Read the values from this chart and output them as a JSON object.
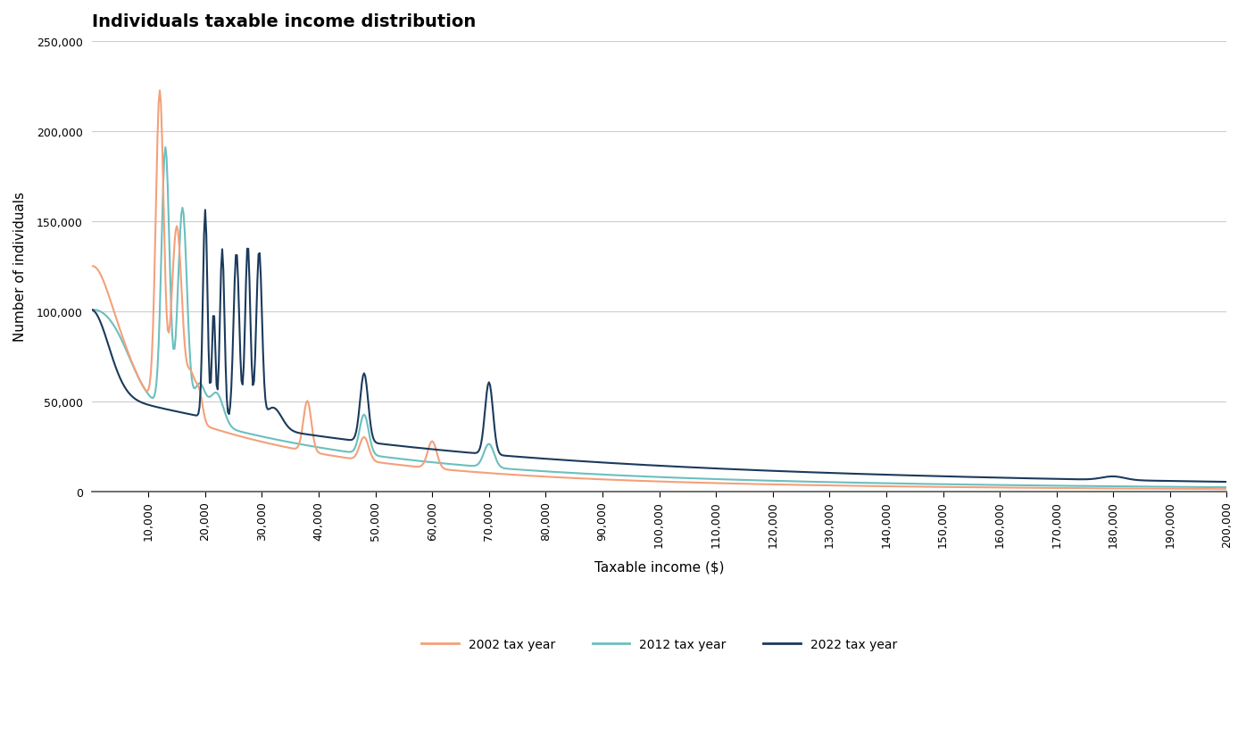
{
  "title": "Individuals taxable income distribution",
  "xlabel": "Taxable income ($)",
  "ylabel": "Number of individuals",
  "xlim": [
    0,
    200000
  ],
  "ylim": [
    0,
    250000
  ],
  "yticks": [
    0,
    50000,
    100000,
    150000,
    200000,
    250000
  ],
  "xticks": [
    10000,
    20000,
    30000,
    40000,
    50000,
    60000,
    70000,
    80000,
    90000,
    100000,
    110000,
    120000,
    130000,
    140000,
    150000,
    160000,
    170000,
    180000,
    190000,
    200000
  ],
  "color_2002": "#f4a07a",
  "color_2012": "#6bbfbf",
  "color_2022": "#1b3a5c",
  "line_width": 1.5,
  "legend_labels": [
    "2002 tax year",
    "2012 tax year",
    "2022 tax year"
  ],
  "background_color": "#ffffff",
  "grid_color": "#cccccc",
  "title_fontsize": 14,
  "label_fontsize": 11,
  "tick_fontsize": 9,
  "legend_fontsize": 10
}
